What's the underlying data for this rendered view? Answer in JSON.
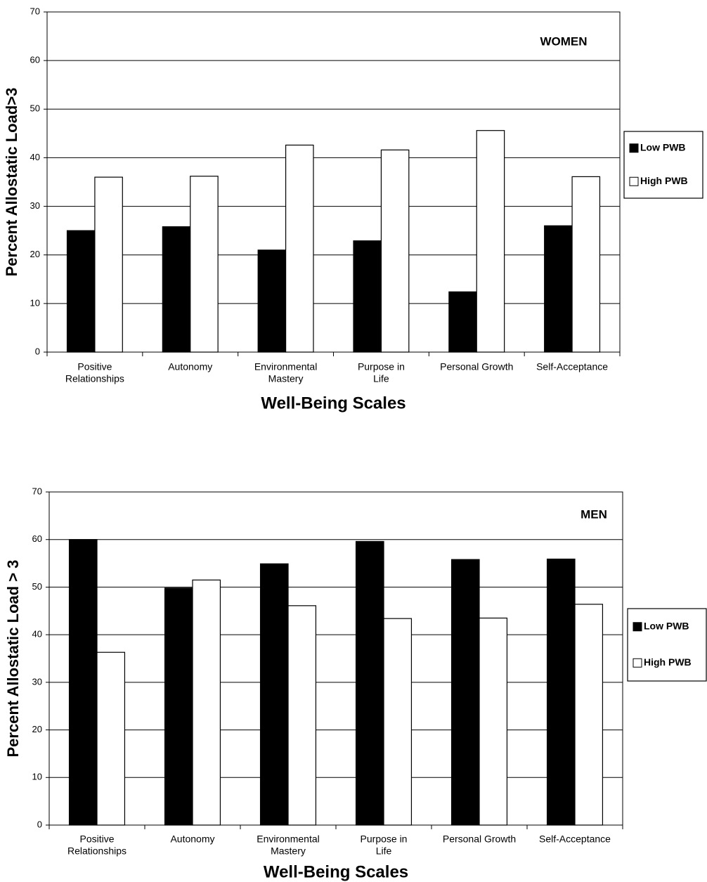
{
  "chart_data": [
    {
      "type": "bar",
      "annotation": "WOMEN",
      "y_label": "Percent Allostatic Load>3",
      "x_label": "Well-Being Scales",
      "categories": [
        [
          "Positive",
          "Relationships"
        ],
        [
          "Autonomy"
        ],
        [
          "Environmental",
          "Mastery"
        ],
        [
          "Purpose in",
          "Life"
        ],
        [
          "Personal Growth"
        ],
        [
          "Self-Acceptance"
        ]
      ],
      "series": [
        {
          "name": "Low PWB",
          "color": "#000000",
          "values": [
            25,
            25.8,
            21,
            22.9,
            12.4,
            26
          ]
        },
        {
          "name": "High PWB",
          "color": "#ffffff",
          "values": [
            36,
            36.2,
            42.6,
            41.6,
            45.6,
            36.1
          ]
        }
      ],
      "ylim": [
        0,
        70
      ],
      "yticks": [
        0,
        10,
        20,
        30,
        40,
        50,
        60,
        70
      ],
      "grid": true,
      "legend": "right"
    },
    {
      "type": "bar",
      "annotation": "MEN",
      "y_label": "Percent Allostatic Load > 3",
      "x_label": "Well-Being Scales",
      "categories": [
        [
          "Positive",
          "Relationships"
        ],
        [
          "Autonomy"
        ],
        [
          "Environmental",
          "Mastery"
        ],
        [
          "Purpose in",
          "Life"
        ],
        [
          "Personal Growth"
        ],
        [
          "Self-Acceptance"
        ]
      ],
      "series": [
        {
          "name": "Low PWB",
          "color": "#000000",
          "values": [
            60,
            49.8,
            54.9,
            59.6,
            55.8,
            55.9
          ]
        },
        {
          "name": "High PWB",
          "color": "#ffffff",
          "values": [
            36.3,
            51.5,
            46.1,
            43.4,
            43.5,
            46.4
          ]
        }
      ],
      "ylim": [
        0,
        70
      ],
      "yticks": [
        0,
        10,
        20,
        30,
        40,
        50,
        60,
        70
      ],
      "grid": true,
      "legend": "right"
    }
  ]
}
